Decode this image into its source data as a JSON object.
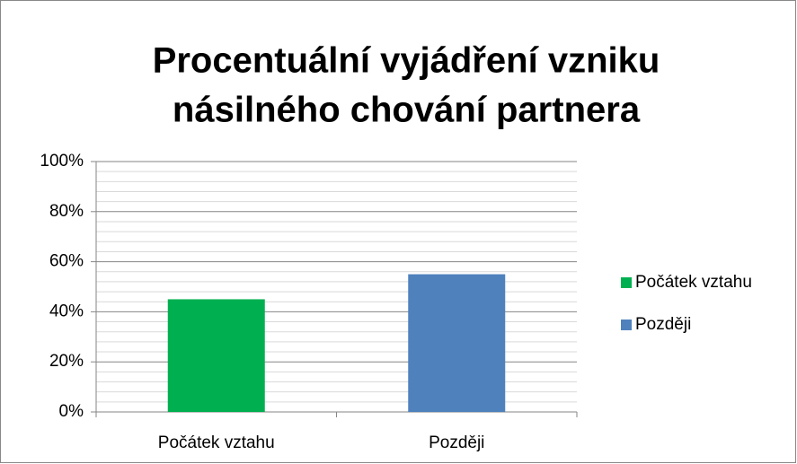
{
  "chart_data": {
    "type": "bar",
    "title": [
      "Procentuální vyjádření vzniku",
      "násilného chování partnera"
    ],
    "categories": [
      "Počátek vztahu",
      "Později"
    ],
    "series": [
      {
        "name": "Počátek vztahu",
        "color": "#00b050",
        "values": [
          45,
          null
        ]
      },
      {
        "name": "Později",
        "color": "#4f81bd",
        "values": [
          null,
          55
        ]
      }
    ],
    "ylim": [
      0,
      100
    ],
    "yticks": [
      {
        "value": 0,
        "label": "0%"
      },
      {
        "value": 20,
        "label": "20%"
      },
      {
        "value": 40,
        "label": "40%"
      },
      {
        "value": 60,
        "label": "60%"
      },
      {
        "value": 80,
        "label": "80%"
      },
      {
        "value": 100,
        "label": "100%"
      }
    ],
    "grid": true,
    "legend": "right"
  }
}
